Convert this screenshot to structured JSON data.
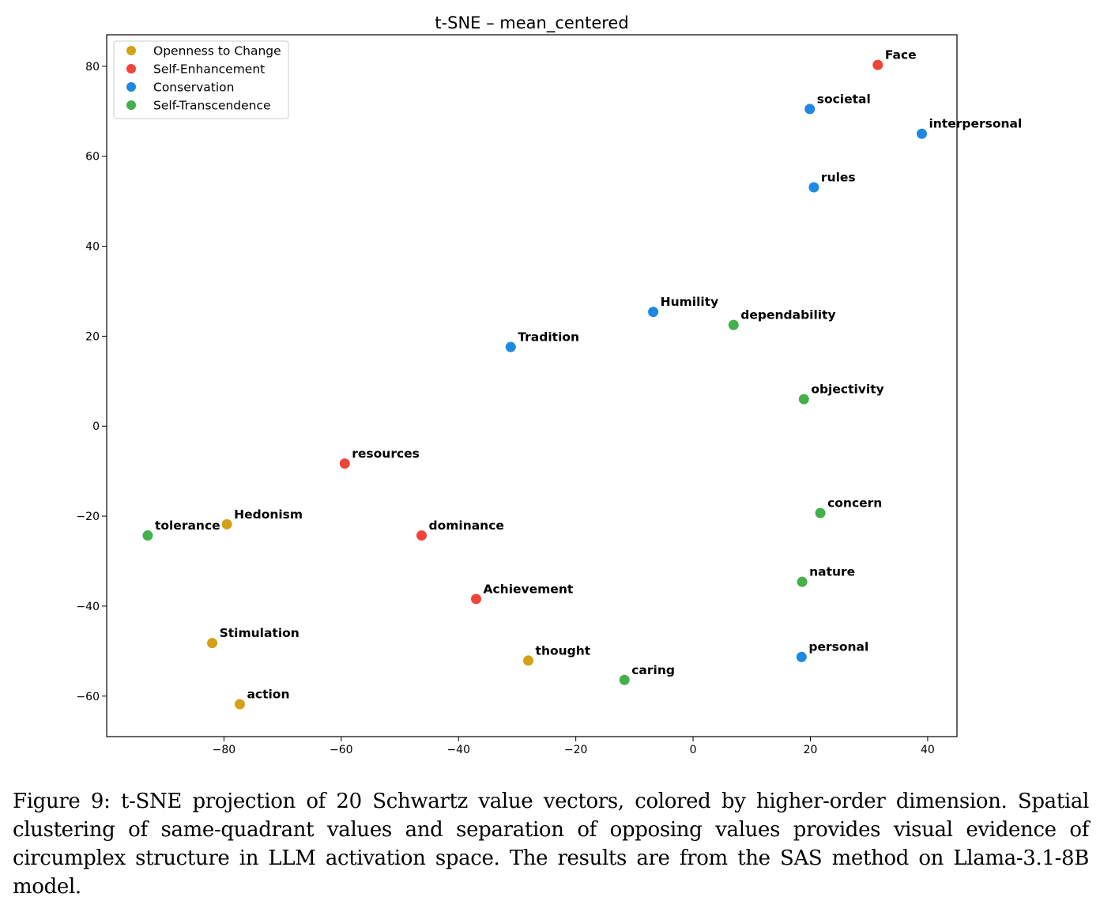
{
  "caption": "Figure 9: t-SNE projection of 20 Schwartz value vectors, colored by higher-order dimension. Spatial clustering of same-quadrant values and separation of opposing values provides visual evidence of circumplex structure in LLM activation space. The results are from the SAS method on Llama-3.1-8B model.",
  "chart_data": {
    "type": "scatter",
    "title": "t-SNE – mean_centered",
    "xlabel": "",
    "ylabel": "",
    "xlim": [
      -100,
      45
    ],
    "ylim": [
      -69,
      87
    ],
    "xticks": [
      -80,
      -60,
      -40,
      -20,
      0,
      20,
      40
    ],
    "yticks": [
      -60,
      -40,
      -20,
      0,
      20,
      40,
      60,
      80
    ],
    "grid": false,
    "legend_position": "upper-left",
    "series": [
      {
        "name": "Openness to Change",
        "color": "#d4a017",
        "points": [
          {
            "label": "Hedonism",
            "x": -79.5,
            "y": -21.8
          },
          {
            "label": "Stimulation",
            "x": -82.0,
            "y": -48.2
          },
          {
            "label": "action",
            "x": -77.3,
            "y": -61.8
          },
          {
            "label": "thought",
            "x": -28.1,
            "y": -52.1
          }
        ]
      },
      {
        "name": "Self-Enhancement",
        "color": "#f0433a",
        "points": [
          {
            "label": "Face",
            "x": 31.5,
            "y": 80.3
          },
          {
            "label": "resources",
            "x": -59.4,
            "y": -8.3
          },
          {
            "label": "dominance",
            "x": -46.3,
            "y": -24.3
          },
          {
            "label": "Achievement",
            "x": -37.0,
            "y": -38.4
          }
        ]
      },
      {
        "name": "Conservation",
        "color": "#1e88e5",
        "points": [
          {
            "label": "societal",
            "x": 19.9,
            "y": 70.5
          },
          {
            "label": "interpersonal",
            "x": 39.0,
            "y": 65.0
          },
          {
            "label": "rules",
            "x": 20.6,
            "y": 53.1
          },
          {
            "label": "Humility",
            "x": -6.8,
            "y": 25.4
          },
          {
            "label": "Tradition",
            "x": -31.1,
            "y": 17.6
          },
          {
            "label": "personal",
            "x": 18.5,
            "y": -51.3
          }
        ]
      },
      {
        "name": "Self-Transcendence",
        "color": "#43b049",
        "points": [
          {
            "label": "dependability",
            "x": 6.9,
            "y": 22.5
          },
          {
            "label": "objectivity",
            "x": 18.9,
            "y": 6.0
          },
          {
            "label": "concern",
            "x": 21.7,
            "y": -19.3
          },
          {
            "label": "nature",
            "x": 18.6,
            "y": -34.6
          },
          {
            "label": "tolerance",
            "x": -93.0,
            "y": -24.3
          },
          {
            "label": "caring",
            "x": -11.7,
            "y": -56.4
          }
        ]
      }
    ]
  }
}
